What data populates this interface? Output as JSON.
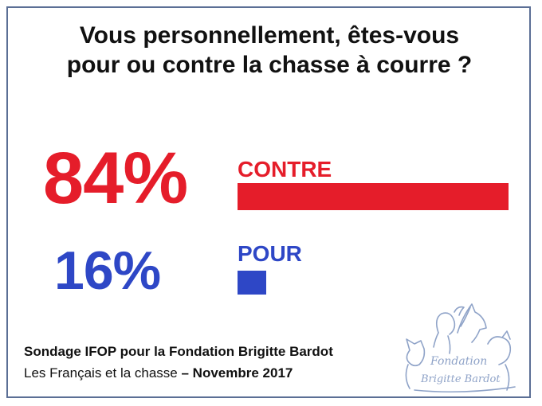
{
  "title_line1": "Vous personnellement, êtes-vous",
  "title_line2": "pour ou contre la chasse à courre ?",
  "source": {
    "line1": "Sondage IFOP pour la Fondation Brigitte Bardot",
    "line2_prefix": "Les Français et la chasse",
    "line2_dash": " – ",
    "line2_date": "Novembre 2017"
  },
  "logo_text": [
    "Fondation",
    "Brigitte Bardot"
  ],
  "colors": {
    "contre": "#e51d2a",
    "pour": "#2e47c6",
    "frame": "#5b6f95",
    "logo": "#8fa3c8"
  },
  "chart_data": {
    "type": "bar",
    "orientation": "horizontal",
    "categories": [
      "CONTRE",
      "POUR"
    ],
    "values": [
      84,
      16
    ],
    "value_labels": [
      "84%",
      "16%"
    ],
    "unit": "%",
    "xlim": [
      0,
      100
    ]
  }
}
